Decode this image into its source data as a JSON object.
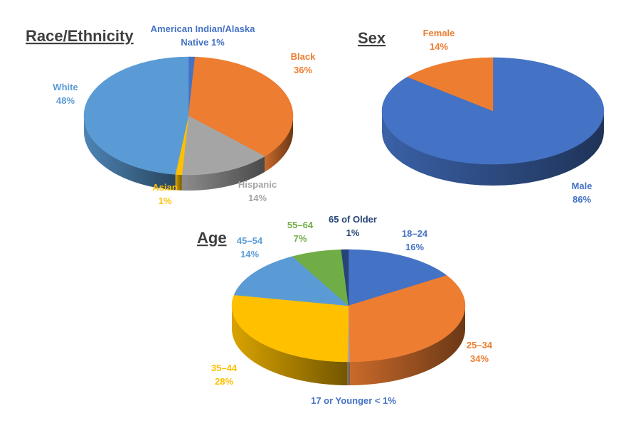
{
  "chart_data": [
    {
      "type": "pie",
      "title": "Race/Ethnicity",
      "slices": [
        {
          "label": "American Indian/Alaska Native",
          "value": 1,
          "display": [
            "American Indian/Alaska",
            "Native 1%"
          ],
          "color": "#4472C4",
          "label_color": "#4472C4"
        },
        {
          "label": "Black",
          "value": 36,
          "display": [
            "Black",
            "36%"
          ],
          "color": "#ED7D31",
          "label_color": "#ED7D31"
        },
        {
          "label": "Hispanic",
          "value": 14,
          "display": [
            "Hispanic",
            "14%"
          ],
          "color": "#A5A5A5",
          "label_color": "#A5A5A5"
        },
        {
          "label": "Asian",
          "value": 1,
          "display": [
            "Asian",
            "1%"
          ],
          "color": "#FFC000",
          "label_color": "#FFC000"
        },
        {
          "label": "White",
          "value": 48,
          "display": [
            "White",
            "48%"
          ],
          "color": "#5B9BD5",
          "label_color": "#5B9BD5"
        }
      ]
    },
    {
      "type": "pie",
      "title": "Sex",
      "slices": [
        {
          "label": "Male",
          "value": 86,
          "display": [
            "Male",
            "86%"
          ],
          "color": "#4472C4",
          "label_color": "#4472C4"
        },
        {
          "label": "Female",
          "value": 14,
          "display": [
            "Female",
            "14%"
          ],
          "color": "#ED7D31",
          "label_color": "#ED7D31"
        }
      ]
    },
    {
      "type": "pie",
      "title": "Age",
      "slices": [
        {
          "label": "18–24",
          "value": 16,
          "display": [
            "18–24",
            "16%"
          ],
          "color": "#4472C4",
          "label_color": "#4472C4"
        },
        {
          "label": "25–34",
          "value": 34,
          "display": [
            "25–34",
            "34%"
          ],
          "color": "#ED7D31",
          "label_color": "#ED7D31"
        },
        {
          "label": "17 or Younger",
          "value": 0.3,
          "display": [
            "17 or Younger < 1%"
          ],
          "color": "#A5A5A5",
          "label_color": "#4472C4"
        },
        {
          "label": "35–44",
          "value": 28,
          "display": [
            "35–44",
            "28%"
          ],
          "color": "#FFC000",
          "label_color": "#FFC000"
        },
        {
          "label": "45–54",
          "value": 14,
          "display": [
            "45–54",
            "14%"
          ],
          "color": "#5B9BD5",
          "label_color": "#5B9BD5"
        },
        {
          "label": "55–64",
          "value": 7,
          "display": [
            "55–64",
            "7%"
          ],
          "color": "#70AD47",
          "label_color": "#70AD47"
        },
        {
          "label": "65 of Older",
          "value": 1,
          "display": [
            "65 of Older",
            "1%"
          ],
          "color": "#264478",
          "label_color": "#264478"
        }
      ]
    }
  ]
}
